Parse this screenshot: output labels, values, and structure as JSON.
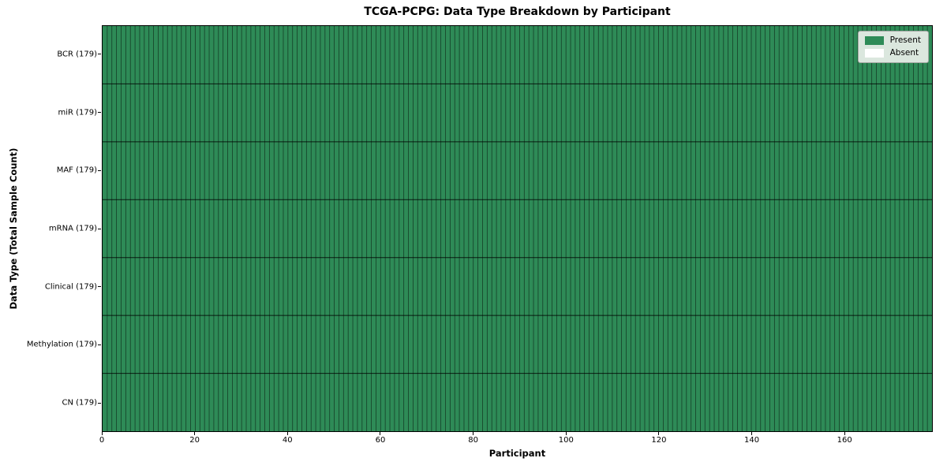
{
  "title": "TCGA-PCPG: Data Type Breakdown by Participant",
  "axes": {
    "x_label": "Participant",
    "y_label": "Data Type (Total Sample Count)"
  },
  "legend": {
    "position": "upper right",
    "items": [
      {
        "label": "Present",
        "color": "#2e8b57"
      },
      {
        "label": "Absent",
        "color": "#ffffff"
      }
    ]
  },
  "chart_data": {
    "type": "heatmap",
    "title": "TCGA-PCPG: Data Type Breakdown by Participant",
    "xlabel": "Participant",
    "ylabel": "Data Type (Total Sample Count)",
    "participants": 179,
    "x_range": [
      0,
      179
    ],
    "x_ticks": [
      0,
      20,
      40,
      60,
      80,
      100,
      120,
      140,
      160
    ],
    "rows": [
      {
        "name": "BCR",
        "total_samples": 179,
        "tick_label": "BCR (179)",
        "present_count": 179,
        "absent_count": 0
      },
      {
        "name": "miR",
        "total_samples": 179,
        "tick_label": "miR (179)",
        "present_count": 179,
        "absent_count": 0
      },
      {
        "name": "MAF",
        "total_samples": 179,
        "tick_label": "MAF (179)",
        "present_count": 179,
        "absent_count": 0
      },
      {
        "name": "mRNA",
        "total_samples": 179,
        "tick_label": "mRNA (179)",
        "present_count": 179,
        "absent_count": 0
      },
      {
        "name": "Clinical",
        "total_samples": 179,
        "tick_label": "Clinical (179)",
        "present_count": 179,
        "absent_count": 0
      },
      {
        "name": "Methylation",
        "total_samples": 179,
        "tick_label": "Methylation (179)",
        "present_count": 179,
        "absent_count": 0
      },
      {
        "name": "CN",
        "total_samples": 179,
        "tick_label": "CN (179)",
        "present_count": 179,
        "absent_count": 0
      }
    ],
    "all_cells_present": true,
    "cell_encoding": {
      "present": 1,
      "absent": 0
    },
    "colors": {
      "present": "#2e8b57",
      "absent": "#ffffff",
      "cell_edge": "rgba(0,0,0,0.55)",
      "row_divider": "rgba(0,0,0,0.8)",
      "axis": "#000000"
    },
    "grid": true,
    "legend_position": "upper right"
  }
}
